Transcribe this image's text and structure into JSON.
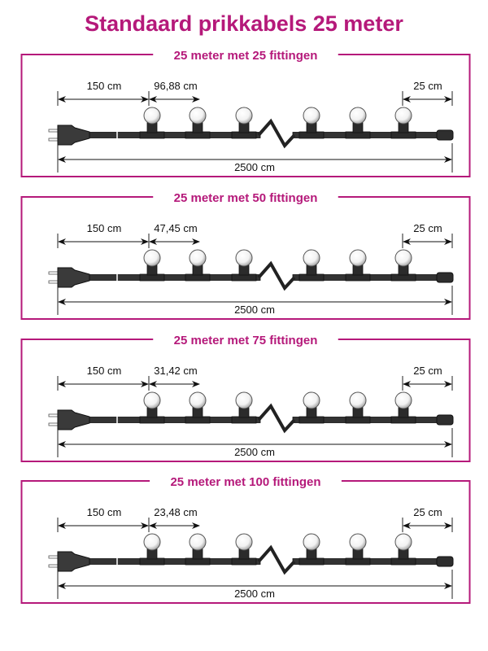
{
  "title": "Standaard prikkabels 25 meter",
  "accent_color": "#b5197a",
  "panels": [
    {
      "label": "25 meter met 25 fittingen",
      "lead_length": "150 cm",
      "spacing": "96,88 cm",
      "tail_length": "25 cm",
      "total_length": "2500 cm"
    },
    {
      "label": "25 meter met 50 fittingen",
      "lead_length": "150 cm",
      "spacing": "47,45 cm",
      "tail_length": "25 cm",
      "total_length": "2500 cm"
    },
    {
      "label": "25 meter met 75 fittingen",
      "lead_length": "150 cm",
      "spacing": "31,42 cm",
      "tail_length": "25 cm",
      "total_length": "2500 cm"
    },
    {
      "label": "25 meter met 100 fittingen",
      "lead_length": "150 cm",
      "spacing": "23,48 cm",
      "tail_length": "25 cm",
      "total_length": "2500 cm"
    }
  ]
}
